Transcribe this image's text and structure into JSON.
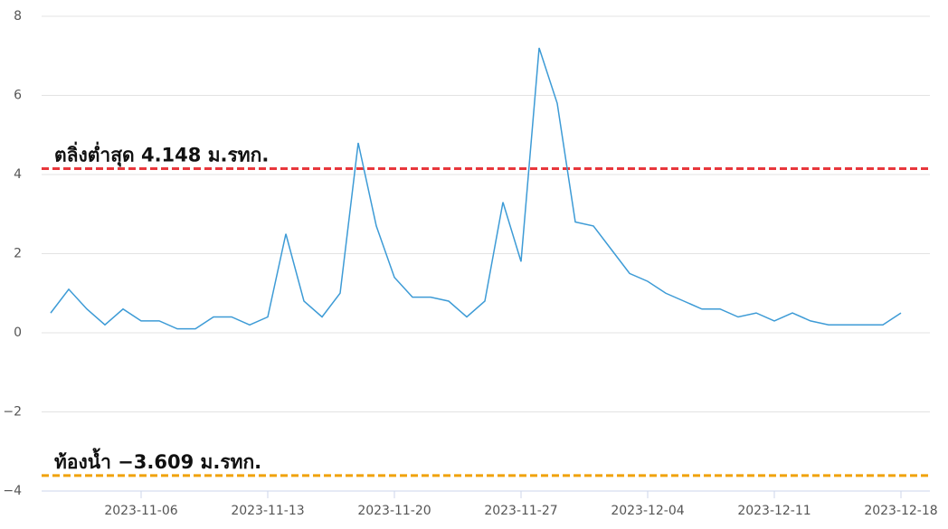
{
  "chart_data": {
    "type": "line",
    "x": [
      "2023-11-01",
      "2023-11-02",
      "2023-11-03",
      "2023-11-04",
      "2023-11-05",
      "2023-11-06",
      "2023-11-07",
      "2023-11-08",
      "2023-11-09",
      "2023-11-10",
      "2023-11-11",
      "2023-11-12",
      "2023-11-13",
      "2023-11-14",
      "2023-11-15",
      "2023-11-16",
      "2023-11-17",
      "2023-11-18",
      "2023-11-19",
      "2023-11-20",
      "2023-11-21",
      "2023-11-22",
      "2023-11-23",
      "2023-11-24",
      "2023-11-25",
      "2023-11-26",
      "2023-11-27",
      "2023-11-28",
      "2023-11-29",
      "2023-11-30",
      "2023-12-01",
      "2023-12-02",
      "2023-12-03",
      "2023-12-04",
      "2023-12-05",
      "2023-12-06",
      "2023-12-07",
      "2023-12-08",
      "2023-12-09",
      "2023-12-10",
      "2023-12-11",
      "2023-12-12",
      "2023-12-13",
      "2023-12-14",
      "2023-12-15",
      "2023-12-16",
      "2023-12-17",
      "2023-12-18"
    ],
    "series": [
      {
        "color": "#3d9bd6",
        "values": [
          0.5,
          1.1,
          0.6,
          0.2,
          0.6,
          0.3,
          0.3,
          0.1,
          0.1,
          0.4,
          0.4,
          0.2,
          0.4,
          2.5,
          0.8,
          0.4,
          1.0,
          4.8,
          2.7,
          1.4,
          0.9,
          0.9,
          0.8,
          0.4,
          0.8,
          3.3,
          1.8,
          7.2,
          5.8,
          2.8,
          2.7,
          2.1,
          1.5,
          1.3,
          1.0,
          0.8,
          0.6,
          0.6,
          0.4,
          0.5,
          0.3,
          0.5,
          0.3,
          0.2,
          0.2,
          0.2,
          0.2,
          0.5
        ]
      }
    ],
    "xlim": [
      "2023-10-31",
      "2023-12-20"
    ],
    "xticks": [
      "2023-11-06",
      "2023-11-13",
      "2023-11-20",
      "2023-11-27",
      "2023-12-04",
      "2023-12-11",
      "2023-12-18"
    ],
    "ylim": [
      -4,
      8
    ],
    "yticks": [
      {
        "value": -4,
        "label": "−4"
      },
      {
        "value": -2,
        "label": "−2"
      },
      0,
      2,
      4,
      6,
      8
    ],
    "grid": true,
    "reference_lines": [
      {
        "value": 4.148,
        "label": "ตลิ่งต่ำสุด 4.148 ม.รทก.",
        "color": "#e8373c"
      },
      {
        "value": -3.609,
        "label": "ท้องน้ำ −3.609 ม.รทก.",
        "color": "#f0a20a"
      }
    ]
  }
}
